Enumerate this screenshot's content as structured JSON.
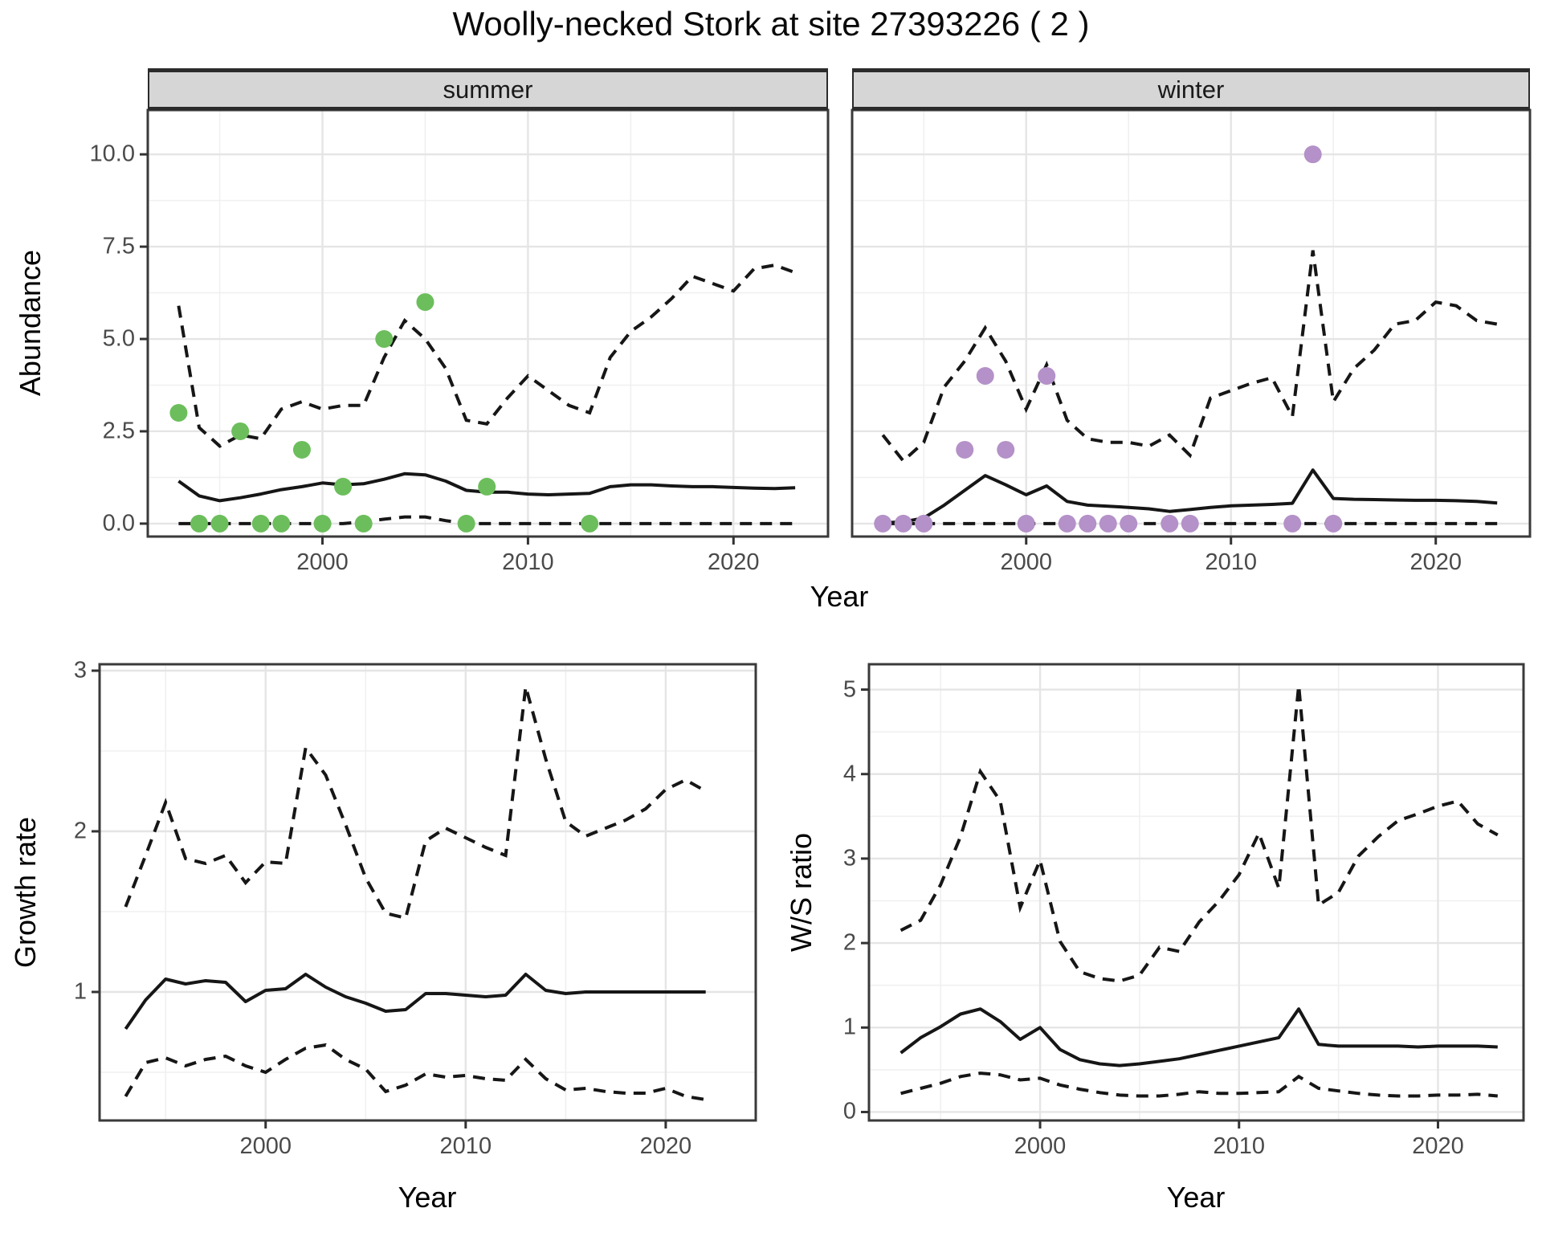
{
  "title": "Woolly-necked Stork at site 27393226 ( 2 )",
  "labels": {
    "y_abundance": "Abundance",
    "y_growth": "Growth rate",
    "y_ws": "W/S ratio",
    "x_year": "Year"
  },
  "colors": {
    "summer_point": "#6cbe5c",
    "winter_point": "#b491c8",
    "line": "#161616",
    "grid_major": "#e5e5e5",
    "grid_minor": "#f0f0f0",
    "panel_border": "#3a3a3a",
    "strip_bg": "#d6d6d6",
    "tick_text": "#4a4a4a"
  },
  "chart_data": [
    {
      "id": "abundance_summer",
      "type": "line",
      "facet_label": "summer",
      "xlabel": "Year",
      "ylabel": "Abundance",
      "xlim": [
        1991.5,
        2024.6
      ],
      "ylim": [
        -0.35,
        11.2
      ],
      "x_ticks": [
        2000,
        2010,
        2020
      ],
      "x_minor": [
        1995,
        2005,
        2015
      ],
      "y_ticks": [
        0,
        2.5,
        5,
        7.5,
        10
      ],
      "y_tick_labels": [
        "0.0",
        "2.5",
        "5.0",
        "7.5",
        "10.0"
      ],
      "y_minor": [
        1.25,
        3.75,
        6.25,
        8.75
      ],
      "point_color": "#6cbe5c",
      "years": [
        1993,
        1994,
        1995,
        1996,
        1997,
        1998,
        1999,
        2000,
        2001,
        2002,
        2003,
        2004,
        2005,
        2006,
        2007,
        2008,
        2009,
        2010,
        2011,
        2012,
        2013,
        2014,
        2015,
        2016,
        2017,
        2018,
        2019,
        2020,
        2021,
        2022,
        2023
      ],
      "median": [
        1.15,
        0.75,
        0.62,
        0.7,
        0.8,
        0.92,
        1.0,
        1.1,
        1.05,
        1.08,
        1.2,
        1.35,
        1.32,
        1.15,
        0.9,
        0.85,
        0.85,
        0.8,
        0.78,
        0.8,
        0.82,
        1.0,
        1.05,
        1.05,
        1.02,
        1.0,
        1.0,
        0.98,
        0.96,
        0.95,
        0.97
      ],
      "upper": [
        5.9,
        2.6,
        2.1,
        2.4,
        2.3,
        3.1,
        3.3,
        3.1,
        3.2,
        3.2,
        4.5,
        5.5,
        5.0,
        4.2,
        2.8,
        2.7,
        3.4,
        4.0,
        3.6,
        3.2,
        3.0,
        4.5,
        5.2,
        5.6,
        6.1,
        6.7,
        6.5,
        6.3,
        6.9,
        7.0,
        6.8
      ],
      "lower": [
        0,
        0,
        0,
        0,
        0,
        0,
        0,
        0,
        0,
        0.05,
        0.12,
        0.18,
        0.18,
        0.08,
        0,
        0,
        0,
        0,
        0,
        0,
        0,
        0,
        0,
        0,
        0,
        0,
        0,
        0,
        0,
        0,
        0
      ],
      "observed": [
        [
          1993,
          3
        ],
        [
          1994,
          0
        ],
        [
          1995,
          0
        ],
        [
          1996,
          2.5
        ],
        [
          1997,
          0
        ],
        [
          1998,
          0
        ],
        [
          1999,
          2
        ],
        [
          2000,
          0
        ],
        [
          2001,
          1
        ],
        [
          2002,
          0
        ],
        [
          2003,
          5
        ],
        [
          2005,
          6
        ],
        [
          2007,
          0
        ],
        [
          2008,
          1
        ],
        [
          2013,
          0
        ]
      ]
    },
    {
      "id": "abundance_winter",
      "type": "line",
      "facet_label": "winter",
      "xlabel": "Year",
      "ylabel": "Abundance",
      "xlim": [
        1991.5,
        2024.6
      ],
      "ylim": [
        -0.35,
        11.2
      ],
      "x_ticks": [
        2000,
        2010,
        2020
      ],
      "x_minor": [
        1995,
        2005,
        2015
      ],
      "y_ticks": [
        0,
        2.5,
        5,
        7.5,
        10
      ],
      "y_tick_labels": [
        "0.0",
        "2.5",
        "5.0",
        "7.5",
        "10.0"
      ],
      "y_minor": [
        1.25,
        3.75,
        6.25,
        8.75
      ],
      "point_color": "#b491c8",
      "years": [
        1993,
        1994,
        1995,
        1996,
        1997,
        1998,
        1999,
        2000,
        2001,
        2002,
        2003,
        2004,
        2005,
        2006,
        2007,
        2008,
        2009,
        2010,
        2011,
        2012,
        2013,
        2014,
        2015,
        2016,
        2017,
        2018,
        2019,
        2020,
        2021,
        2022,
        2023
      ],
      "median": [
        0.02,
        0.05,
        0.15,
        0.5,
        0.9,
        1.3,
        1.05,
        0.78,
        1.02,
        0.6,
        0.5,
        0.47,
        0.44,
        0.4,
        0.33,
        0.38,
        0.44,
        0.48,
        0.5,
        0.52,
        0.55,
        1.45,
        0.68,
        0.66,
        0.65,
        0.64,
        0.63,
        0.63,
        0.62,
        0.6,
        0.56
      ],
      "upper": [
        2.4,
        1.7,
        2.2,
        3.7,
        4.4,
        5.3,
        4.4,
        3.1,
        4.3,
        2.8,
        2.3,
        2.2,
        2.2,
        2.1,
        2.4,
        1.85,
        3.4,
        3.6,
        3.8,
        3.95,
        2.9,
        7.4,
        3.3,
        4.2,
        4.7,
        5.4,
        5.5,
        6.0,
        5.9,
        5.5,
        5.4
      ],
      "lower": [
        0,
        0,
        0,
        0,
        0,
        0,
        0,
        0,
        0,
        0,
        0,
        0,
        0,
        0,
        0,
        0,
        0,
        0,
        0,
        0,
        0,
        0,
        0,
        0,
        0,
        0,
        0,
        0,
        0,
        0,
        0
      ],
      "observed": [
        [
          1993,
          0
        ],
        [
          1994,
          0
        ],
        [
          1995,
          0
        ],
        [
          1997,
          2
        ],
        [
          1998,
          4
        ],
        [
          1999,
          2
        ],
        [
          2000,
          0
        ],
        [
          2001,
          4
        ],
        [
          2002,
          0
        ],
        [
          2003,
          0
        ],
        [
          2004,
          0
        ],
        [
          2005,
          0
        ],
        [
          2007,
          0
        ],
        [
          2008,
          0
        ],
        [
          2013,
          0
        ],
        [
          2014,
          10
        ],
        [
          2015,
          0
        ]
      ]
    },
    {
      "id": "growth_rate",
      "type": "line",
      "facet_label": "",
      "xlabel": "Year",
      "ylabel": "Growth rate",
      "xlim": [
        1991.7,
        2024.5
      ],
      "ylim": [
        0.2,
        3.04
      ],
      "x_ticks": [
        2000,
        2010,
        2020
      ],
      "x_minor": [
        1995,
        2005,
        2015
      ],
      "y_ticks": [
        1,
        2,
        3
      ],
      "y_tick_labels": [
        "1",
        "2",
        "3"
      ],
      "y_minor": [
        0.5,
        1.5,
        2.5
      ],
      "point_color": "",
      "years": [
        1993,
        1994,
        1995,
        1996,
        1997,
        1998,
        1999,
        2000,
        2001,
        2002,
        2003,
        2004,
        2005,
        2006,
        2007,
        2008,
        2009,
        2010,
        2011,
        2012,
        2013,
        2014,
        2015,
        2016,
        2017,
        2018,
        2019,
        2020,
        2021,
        2022
      ],
      "median": [
        0.77,
        0.95,
        1.08,
        1.05,
        1.07,
        1.06,
        0.94,
        1.01,
        1.02,
        1.11,
        1.03,
        0.97,
        0.93,
        0.88,
        0.89,
        0.99,
        0.99,
        0.98,
        0.97,
        0.98,
        1.11,
        1.01,
        0.99,
        1.0,
        1.0,
        1.0,
        1.0,
        1.0,
        1.0,
        1.0
      ],
      "upper": [
        1.53,
        1.85,
        2.18,
        1.83,
        1.8,
        1.85,
        1.68,
        1.81,
        1.8,
        2.52,
        2.35,
        2.04,
        1.71,
        1.49,
        1.46,
        1.94,
        2.02,
        1.96,
        1.9,
        1.85,
        2.9,
        2.45,
        2.06,
        1.97,
        2.02,
        2.07,
        2.14,
        2.26,
        2.32,
        2.25
      ],
      "lower": [
        0.35,
        0.56,
        0.59,
        0.54,
        0.58,
        0.6,
        0.54,
        0.5,
        0.58,
        0.65,
        0.67,
        0.58,
        0.52,
        0.38,
        0.42,
        0.49,
        0.47,
        0.48,
        0.46,
        0.45,
        0.58,
        0.46,
        0.39,
        0.4,
        0.38,
        0.37,
        0.37,
        0.4,
        0.35,
        0.33
      ],
      "observed": []
    },
    {
      "id": "ws_ratio",
      "type": "line",
      "facet_label": "",
      "xlabel": "Year",
      "ylabel": "W/S ratio",
      "xlim": [
        1991.4,
        2024.3
      ],
      "ylim": [
        -0.1,
        5.3
      ],
      "x_ticks": [
        2000,
        2010,
        2020
      ],
      "x_minor": [
        1995,
        2005,
        2015
      ],
      "y_ticks": [
        0,
        1,
        2,
        3,
        4,
        5
      ],
      "y_tick_labels": [
        "0",
        "1",
        "2",
        "3",
        "4",
        "5"
      ],
      "y_minor": [
        0.5,
        1.5,
        2.5,
        3.5,
        4.5
      ],
      "point_color": "",
      "years": [
        1993,
        1994,
        1995,
        1996,
        1997,
        1998,
        1999,
        2000,
        2001,
        2002,
        2003,
        2004,
        2005,
        2006,
        2007,
        2008,
        2009,
        2010,
        2011,
        2012,
        2013,
        2014,
        2015,
        2016,
        2017,
        2018,
        2019,
        2020,
        2021,
        2022,
        2023
      ],
      "median": [
        0.7,
        0.88,
        1.01,
        1.16,
        1.22,
        1.07,
        0.86,
        1.0,
        0.74,
        0.62,
        0.57,
        0.55,
        0.57,
        0.6,
        0.63,
        0.68,
        0.73,
        0.78,
        0.83,
        0.88,
        1.22,
        0.8,
        0.78,
        0.78,
        0.78,
        0.78,
        0.77,
        0.78,
        0.78,
        0.78,
        0.77
      ],
      "upper": [
        2.15,
        2.27,
        2.69,
        3.26,
        4.03,
        3.68,
        2.42,
        2.98,
        2.02,
        1.66,
        1.58,
        1.55,
        1.62,
        1.95,
        1.9,
        2.25,
        2.5,
        2.81,
        3.3,
        2.65,
        5.05,
        2.45,
        2.6,
        3.03,
        3.26,
        3.45,
        3.53,
        3.62,
        3.68,
        3.41,
        3.28
      ],
      "lower": [
        0.22,
        0.28,
        0.34,
        0.42,
        0.46,
        0.44,
        0.38,
        0.4,
        0.32,
        0.27,
        0.23,
        0.2,
        0.19,
        0.19,
        0.21,
        0.24,
        0.22,
        0.22,
        0.23,
        0.24,
        0.42,
        0.28,
        0.25,
        0.22,
        0.2,
        0.19,
        0.19,
        0.2,
        0.2,
        0.21,
        0.19
      ],
      "observed": []
    }
  ]
}
